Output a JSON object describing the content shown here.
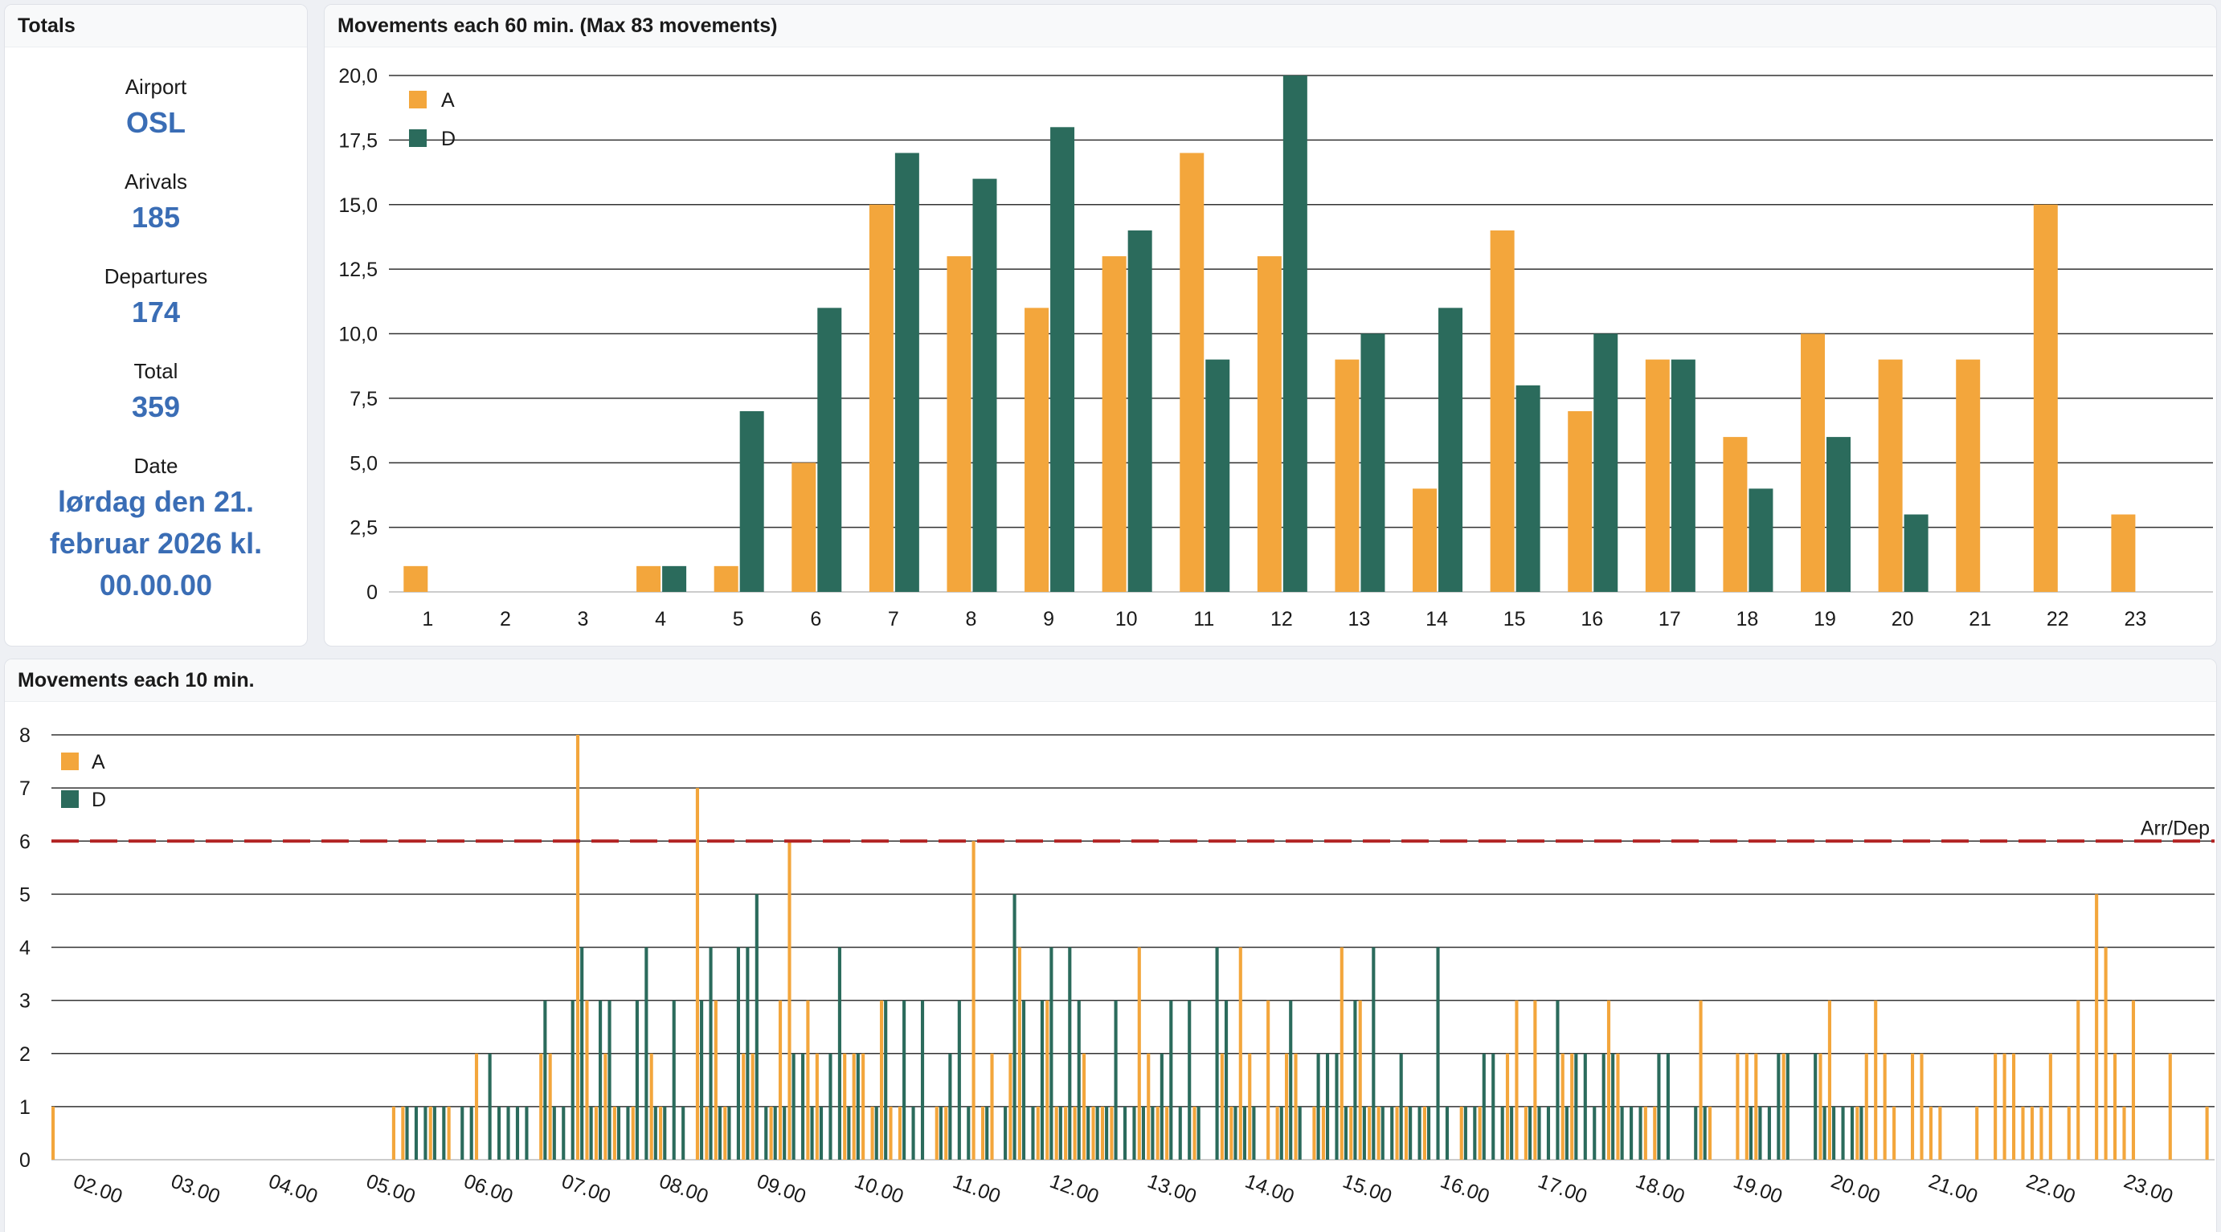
{
  "totals": {
    "title": "Totals",
    "airport_label": "Airport",
    "airport_value": "OSL",
    "arrivals_label": "Arivals",
    "arrivals_value": "185",
    "departures_label": "Departures",
    "departures_value": "174",
    "total_label": "Total",
    "total_value": "359",
    "date_label": "Date",
    "date_value": "lørdag den 21. februar 2026 kl. 00.00.00"
  },
  "colors": {
    "arrivals": "#f3a63c",
    "departures": "#2b6b5c",
    "limit": "#b22222"
  },
  "chart_data": [
    {
      "type": "bar",
      "title": "Movements each 60 min. (Max 83 movements)",
      "categories": [
        "1",
        "2",
        "3",
        "4",
        "5",
        "6",
        "7",
        "8",
        "9",
        "10",
        "11",
        "12",
        "13",
        "14",
        "15",
        "16",
        "17",
        "18",
        "19",
        "20",
        "21",
        "22",
        "23"
      ],
      "series": [
        {
          "name": "A",
          "values": [
            1,
            0,
            0,
            1,
            1,
            5,
            15,
            13,
            11,
            13,
            17,
            13,
            9,
            4,
            14,
            7,
            9,
            6,
            10,
            9,
            9,
            15,
            3
          ]
        },
        {
          "name": "D",
          "values": [
            0,
            0,
            0,
            1,
            7,
            11,
            17,
            16,
            18,
            14,
            9,
            20,
            10,
            11,
            8,
            10,
            9,
            4,
            6,
            3,
            0,
            0,
            0
          ]
        }
      ],
      "ylim": [
        0,
        20
      ],
      "yticks": [
        "0",
        "2,5",
        "5,0",
        "7,5",
        "10,0",
        "12,5",
        "15,0",
        "17,5",
        "20,0"
      ],
      "grid": true,
      "legend": "top-left"
    },
    {
      "type": "bar",
      "title": "Movements each 10 min.",
      "xlabels": [
        "02.00",
        "03.00",
        "04.00",
        "05.00",
        "06.00",
        "07.00",
        "08.00",
        "09.00",
        "10.00",
        "11.00",
        "12.00",
        "13.00",
        "14.00",
        "15.00",
        "16.00",
        "17.00",
        "18.00",
        "19.00",
        "20.00",
        "21.00",
        "22.00",
        "23.00"
      ],
      "series": [
        {
          "name": "A",
          "values": [
            1,
            0,
            0,
            0,
            0,
            0,
            0,
            0,
            0,
            0,
            0,
            0,
            0,
            0,
            0,
            0,
            0,
            0,
            0,
            0,
            0,
            0,
            0,
            0,
            0,
            0,
            0,
            0,
            0,
            0,
            0,
            0,
            0,
            0,
            0,
            0,
            0,
            1,
            1,
            0,
            0,
            1,
            0,
            1,
            0,
            0,
            2,
            0,
            0,
            0,
            0,
            0,
            0,
            2,
            2,
            0,
            0,
            8,
            3,
            1,
            2,
            1,
            0,
            1,
            0,
            2,
            1,
            0,
            0,
            0,
            7,
            1,
            3,
            1,
            0,
            2,
            2,
            0,
            1,
            3,
            6,
            0,
            3,
            2,
            0,
            0,
            2,
            2,
            2,
            1,
            3,
            1,
            1,
            0,
            0,
            0,
            1,
            1,
            0,
            0,
            6,
            1,
            2,
            0,
            2,
            4,
            0,
            1,
            3,
            1,
            1,
            1,
            2,
            1,
            1,
            1,
            0,
            0,
            4,
            2,
            1,
            1,
            0,
            0,
            1,
            0,
            0,
            2,
            1,
            4,
            2,
            0,
            3,
            1,
            2,
            2,
            0,
            1,
            1,
            0,
            4,
            1,
            3,
            1,
            1,
            0,
            1,
            1,
            0,
            1,
            0,
            0,
            0,
            1,
            0,
            1,
            0,
            0,
            2,
            3,
            1,
            3,
            0,
            0,
            2,
            2,
            0,
            0,
            0,
            3,
            2,
            0,
            0,
            1,
            1,
            0,
            0,
            0,
            0,
            3,
            1,
            0,
            0,
            2,
            2,
            2,
            0,
            0,
            2,
            0,
            0,
            0,
            2,
            3,
            0,
            0,
            1,
            2,
            3,
            2,
            1,
            0,
            2,
            2,
            1,
            1,
            0,
            0,
            0,
            1,
            0,
            2,
            2,
            2,
            1,
            1,
            1,
            2,
            0,
            1,
            3,
            0,
            5,
            4,
            2,
            1,
            3,
            0,
            0,
            0,
            2,
            0,
            0,
            0,
            1
          ]
        },
        {
          "name": "D",
          "values": [
            0,
            0,
            0,
            0,
            0,
            0,
            0,
            0,
            0,
            0,
            0,
            0,
            0,
            0,
            0,
            0,
            0,
            0,
            0,
            0,
            0,
            0,
            0,
            0,
            0,
            0,
            0,
            0,
            0,
            0,
            0,
            0,
            0,
            0,
            0,
            0,
            0,
            0,
            1,
            1,
            1,
            1,
            1,
            0,
            1,
            1,
            0,
            2,
            1,
            1,
            1,
            1,
            0,
            3,
            1,
            1,
            3,
            4,
            1,
            3,
            3,
            1,
            1,
            3,
            4,
            1,
            1,
            3,
            1,
            0,
            3,
            4,
            1,
            1,
            4,
            4,
            5,
            1,
            1,
            1,
            2,
            2,
            1,
            1,
            2,
            4,
            1,
            2,
            0,
            1,
            3,
            0,
            3,
            1,
            3,
            0,
            1,
            2,
            3,
            1,
            0,
            1,
            0,
            1,
            5,
            3,
            1,
            3,
            4,
            1,
            4,
            3,
            1,
            1,
            1,
            3,
            1,
            1,
            1,
            1,
            2,
            3,
            1,
            3,
            1,
            0,
            4,
            3,
            1,
            1,
            1,
            0,
            0,
            1,
            3,
            1,
            0,
            2,
            2,
            2,
            1,
            3,
            1,
            4,
            1,
            1,
            2,
            1,
            1,
            1,
            4,
            1,
            0,
            1,
            1,
            2,
            2,
            1,
            1,
            0,
            1,
            1,
            1,
            3,
            1,
            2,
            2,
            1,
            2,
            2,
            1,
            1,
            1,
            0,
            2,
            2,
            0,
            0,
            1,
            1,
            0,
            0,
            0,
            0,
            1,
            1,
            1,
            2,
            2,
            0,
            0,
            2,
            1,
            1,
            1,
            1,
            1,
            0,
            0,
            0,
            0,
            0,
            0,
            0,
            0,
            0,
            0,
            0,
            0,
            0,
            0,
            0,
            0,
            0,
            0,
            0,
            0,
            0,
            0,
            0,
            0,
            0,
            0,
            0,
            0
          ]
        }
      ],
      "ylim": [
        0,
        8
      ],
      "yticks": [
        "0",
        "1",
        "2",
        "3",
        "4",
        "5",
        "6",
        "7",
        "8"
      ],
      "reference_line": {
        "value": 6,
        "label": "Arr/Dep"
      },
      "grid": true,
      "legend": "top-left"
    }
  ]
}
